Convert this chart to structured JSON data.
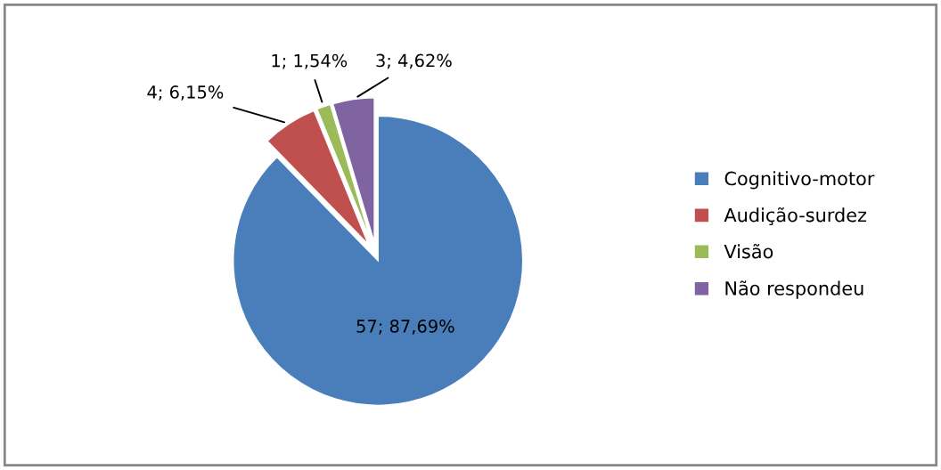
{
  "chart_data": {
    "type": "pie",
    "categories": [
      "Cognitivo-motor",
      "Audição-surdez",
      "Visão",
      "Não respondeu"
    ],
    "values": [
      57,
      4,
      1,
      3
    ],
    "colors": [
      "#4a7ebb",
      "#c0504d",
      "#9bbb59",
      "#8064a2"
    ],
    "value_labels": [
      "57; 87,69%",
      "4; 6,15%",
      "1; 1,54%",
      "3; 4,62%"
    ],
    "legend": "right"
  }
}
